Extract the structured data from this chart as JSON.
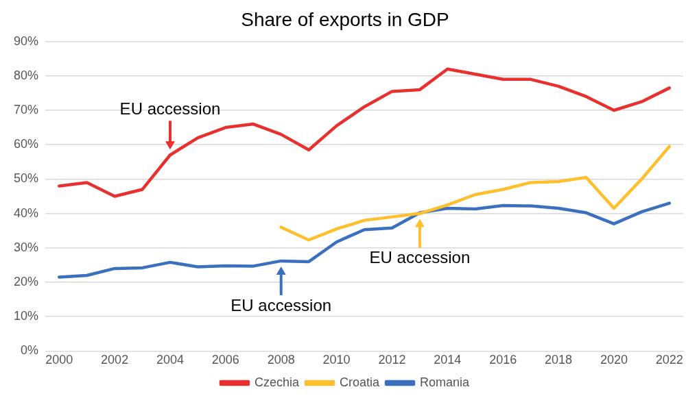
{
  "chart_data": {
    "type": "line",
    "title": "Share of exports in GDP",
    "x": [
      2000,
      2001,
      2002,
      2003,
      2004,
      2005,
      2006,
      2007,
      2008,
      2009,
      2010,
      2011,
      2012,
      2013,
      2014,
      2015,
      2016,
      2017,
      2018,
      2019,
      2020,
      2021,
      2022
    ],
    "series": [
      {
        "name": "Czechia",
        "color": "#e8302f",
        "values": [
          48,
          49,
          45,
          47,
          57,
          62,
          65,
          66,
          63,
          58.5,
          65.5,
          71,
          75.5,
          76,
          82,
          80.5,
          79,
          79,
          77,
          74,
          70,
          72.5,
          76.5
        ]
      },
      {
        "name": "Croatia",
        "color": "#fdbf2d",
        "values": [
          null,
          null,
          null,
          null,
          null,
          null,
          null,
          null,
          36,
          32.3,
          35.5,
          38,
          39,
          40,
          42.5,
          45.5,
          47,
          49,
          49.3,
          50.5,
          41.5,
          50,
          59.5
        ]
      },
      {
        "name": "Romania",
        "color": "#3b70bf",
        "values": [
          21.5,
          22,
          24,
          24.2,
          25.8,
          24.5,
          24.8,
          24.7,
          26.2,
          26,
          31.7,
          35.3,
          35.8,
          40.2,
          41.5,
          41.3,
          42.3,
          42.2,
          41.5,
          40.2,
          37,
          40.5,
          43
        ]
      }
    ],
    "xlim": [
      1999.5,
      2022.5
    ],
    "xticks": [
      2000,
      2002,
      2004,
      2006,
      2008,
      2010,
      2012,
      2014,
      2016,
      2018,
      2020,
      2022
    ],
    "ylim": [
      0,
      90
    ],
    "yticks": [
      {
        "value": 0,
        "label": "0%"
      },
      {
        "value": 10,
        "label": "10%"
      },
      {
        "value": 20,
        "label": "20%"
      },
      {
        "value": 30,
        "label": "30%"
      },
      {
        "value": 40,
        "label": "40%"
      },
      {
        "value": 50,
        "label": "50%"
      },
      {
        "value": 60,
        "label": "60%"
      },
      {
        "value": 70,
        "label": "70%"
      },
      {
        "value": 80,
        "label": "80%"
      },
      {
        "value": 90,
        "label": "90%"
      }
    ],
    "annotations": [
      {
        "text": "EU accession",
        "x": 2004,
        "y": 57
      },
      {
        "text": "EU accession",
        "x": 2013,
        "y": 40
      },
      {
        "text": "EU accession",
        "x": 2008,
        "y": 26.2
      }
    ],
    "grid": "y",
    "legend": "bottom",
    "marker": "none",
    "line_style": "solid"
  }
}
